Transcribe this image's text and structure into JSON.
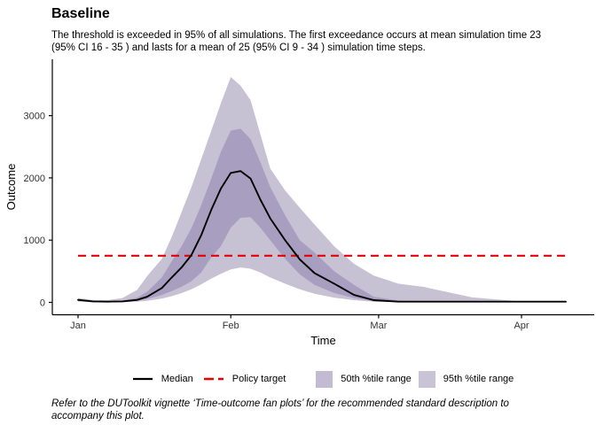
{
  "header": {
    "title": "Baseline",
    "subtitle_lines": [
      "The threshold is exceeded in 95% of all simulations. The first exceedance occurs at mean simulation time 23",
      "(95% CI 16 - 35 ) and lasts for a mean of 25 (95% CI 9 - 34 ) simulation time steps."
    ]
  },
  "legend": {
    "items": [
      {
        "label": "Median",
        "key": "solid-line",
        "color": "#000000"
      },
      {
        "label": "Policy target",
        "key": "dashed-line",
        "color": "#E60000"
      },
      {
        "label": "50th %tile range",
        "key": "swatch",
        "color": "#C2BBD1"
      },
      {
        "label": "95th %tile range",
        "key": "swatch",
        "color": "#C9C3D6"
      }
    ]
  },
  "footer": {
    "lines": [
      "Refer to the DUToolkit vignette ‘Time-outcome fan plots’ for the recommended standard description to",
      "accompany this plot."
    ]
  },
  "chart_data": {
    "type": "area",
    "title": "Baseline",
    "xlabel": "Time",
    "ylabel": "Outcome",
    "x_ticks": [
      {
        "label": "Jan",
        "day": 0
      },
      {
        "label": "Feb",
        "day": 31
      },
      {
        "label": "Mar",
        "day": 61
      },
      {
        "label": "Apr",
        "day": 90
      }
    ],
    "y_ticks": [
      0,
      1000,
      2000,
      3000
    ],
    "ylim": [
      -200,
      3850
    ],
    "grid": "off",
    "legend_position": "bottom",
    "policy_target": 750,
    "series": {
      "days": [
        0,
        3,
        6,
        9,
        12,
        14,
        17,
        19,
        21,
        23,
        25,
        27,
        29,
        31,
        33,
        35,
        37,
        39,
        42,
        45,
        48,
        52,
        56,
        60,
        65,
        70,
        80,
        90,
        99
      ],
      "median": [
        40,
        15,
        12,
        15,
        40,
        90,
        230,
        400,
        560,
        760,
        1080,
        1480,
        1830,
        2080,
        2110,
        1990,
        1650,
        1350,
        1000,
        690,
        470,
        300,
        120,
        35,
        12,
        12,
        12,
        12,
        12
      ],
      "p25": [
        25,
        8,
        6,
        10,
        25,
        55,
        120,
        180,
        250,
        340,
        480,
        720,
        905,
        1200,
        1360,
        1370,
        1200,
        1000,
        700,
        450,
        280,
        150,
        70,
        15,
        8,
        6,
        5,
        5,
        5
      ],
      "p75": [
        55,
        25,
        20,
        28,
        75,
        170,
        400,
        660,
        900,
        1190,
        1560,
        1980,
        2420,
        2760,
        2790,
        2620,
        2250,
        1850,
        1400,
        1000,
        800,
        500,
        280,
        90,
        30,
        18,
        14,
        13,
        13
      ],
      "lo95": [
        10,
        3,
        2,
        4,
        12,
        25,
        60,
        100,
        150,
        210,
        290,
        380,
        460,
        530,
        560,
        540,
        480,
        400,
        300,
        210,
        140,
        75,
        35,
        12,
        5,
        3,
        2,
        2,
        2
      ],
      "hi95": [
        70,
        40,
        35,
        70,
        200,
        420,
        700,
        1050,
        1450,
        1850,
        2300,
        2750,
        3200,
        3620,
        3480,
        3250,
        2700,
        2150,
        1800,
        1520,
        1250,
        900,
        620,
        430,
        300,
        250,
        80,
        14,
        13
      ]
    },
    "colors": {
      "median": "#000000",
      "policy_target": "#E60000",
      "band50": "#A79EC0",
      "band95": "#C7C1D4"
    }
  }
}
